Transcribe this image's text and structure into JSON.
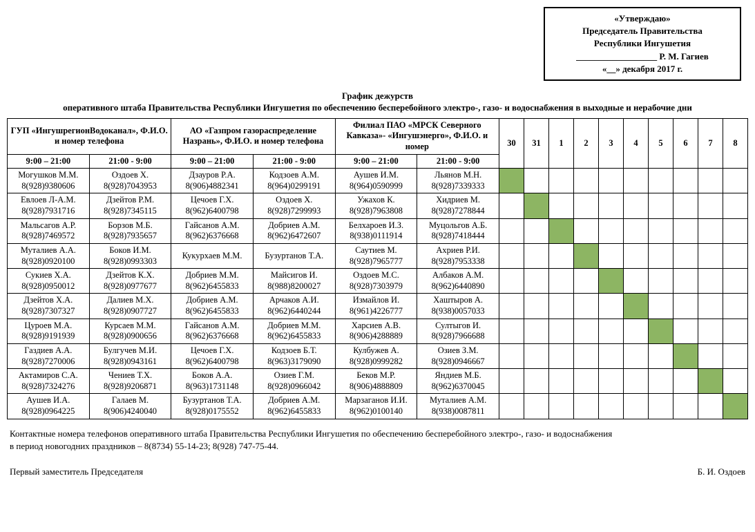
{
  "approval": {
    "line1": "«Утверждаю»",
    "line2": "Председатель Правительства",
    "line3": "Республики Ингушетия",
    "line4": "__________________ Р. М. Гагиев",
    "line5": "«__» декабря 2017 г."
  },
  "title": {
    "line1": "График дежурств",
    "line2": "оперативного штаба Правительства Республики Ингушетия по обеспечению бесперебойного электро-, газо- и водоснабжения в выходные и нерабочие дни"
  },
  "orgs": [
    "ГУП «ИнгушрегионВодоканал», Ф.И.О. и номер телефона",
    "АО «Газпром газораспределение Назрань», Ф.И.О. и номер телефона",
    "Филиал ПАО «МРСК Северного Кавказа»- «Ингушэнерго», Ф.И.О. и номер"
  ],
  "shifts": {
    "day": "9:00 – 21:00",
    "night": "21:00 - 9:00"
  },
  "days": [
    "30",
    "31",
    "1",
    "2",
    "3",
    "4",
    "5",
    "6",
    "7",
    "8"
  ],
  "rows": [
    {
      "cells": [
        {
          "n": "Могушков М.М.",
          "p": "8(928)9380606"
        },
        {
          "n": "Оздоев Х.",
          "p": "8(928)7043953"
        },
        {
          "n": "Дзауров Р.А.",
          "p": "8(906)4882341"
        },
        {
          "n": "Кодзоев А.М.",
          "p": "8(964)0299191"
        },
        {
          "n": "Аушев И.М.",
          "p": "8(964)0590999"
        },
        {
          "n": "Льянов М.Н.",
          "p": "8(928)7339333"
        }
      ],
      "green": 0
    },
    {
      "cells": [
        {
          "n": "Евлоев Л-А.М.",
          "p": "8(928)7931716"
        },
        {
          "n": "Дзейтов Р.М.",
          "p": "8(928)7345115"
        },
        {
          "n": "Цечоев Г.Х.",
          "p": "8(962)6400798"
        },
        {
          "n": "Оздоев Х.",
          "p": "8(928)7299993"
        },
        {
          "n": "Ужахов К.",
          "p": "8(928)7963808"
        },
        {
          "n": "Хидриев М.",
          "p": "8(928)7278844"
        }
      ],
      "green": 1
    },
    {
      "cells": [
        {
          "n": "Мальсагов А.Р.",
          "p": "8(928)7469572"
        },
        {
          "n": "Борзов М.Б.",
          "p": "8(928)7935657"
        },
        {
          "n": "Гайсанов А.М.",
          "p": "8(962)6376668"
        },
        {
          "n": "Добриев А.М.",
          "p": "8(962)6472607"
        },
        {
          "n": "Белхароев И.З.",
          "p": "8(938)0111914"
        },
        {
          "n": "Муцольгов А.Б.",
          "p": "8(928)7418444"
        }
      ],
      "green": 2
    },
    {
      "cells": [
        {
          "n": "Муталиев А.А.",
          "p": "8(928)0920100"
        },
        {
          "n": "Боков И.М.",
          "p": "8(928)0993303"
        },
        {
          "n": "Кукурхаев М.М.",
          "p": ""
        },
        {
          "n": "Бузуртанов Т.А.",
          "p": ""
        },
        {
          "n": "Саутиев М.",
          "p": "8(928)7965777"
        },
        {
          "n": "Ахриев Р.И.",
          "p": "8(928)7953338"
        }
      ],
      "green": 3
    },
    {
      "cells": [
        {
          "n": "Сукиев Х.А.",
          "p": "8(928)0950012"
        },
        {
          "n": "Дзейтов К.Х.",
          "p": "8(928)0977677"
        },
        {
          "n": "Добриев М.М.",
          "p": "8(962)6455833"
        },
        {
          "n": "Майсигов И.",
          "p": "8(988)8200027"
        },
        {
          "n": "Оздоев М.С.",
          "p": "8(928)7303979"
        },
        {
          "n": "Албаков А.М.",
          "p": "8(962)6440890"
        }
      ],
      "green": 4
    },
    {
      "cells": [
        {
          "n": "Дзейтов Х.А.",
          "p": "8(928)7307327"
        },
        {
          "n": "Далиев М.Х.",
          "p": "8(928)0907727"
        },
        {
          "n": "Добриев А.М.",
          "p": "8(962)6455833"
        },
        {
          "n": "Арчаков А.И.",
          "p": "8(962)6440244"
        },
        {
          "n": "Измайлов И.",
          "p": "8(961)4226777"
        },
        {
          "n": "Хаштыров А.",
          "p": "8(938)0057033"
        }
      ],
      "green": 5
    },
    {
      "cells": [
        {
          "n": "Цуроев М.А.",
          "p": "8(928)9191939"
        },
        {
          "n": "Курсаев М.М.",
          "p": "8(928)0900656"
        },
        {
          "n": "Гайсанов А.М.",
          "p": "8(962)6376668"
        },
        {
          "n": "Добриев М.М.",
          "p": "8(962)6455833"
        },
        {
          "n": "Харсиев А.В.",
          "p": "8(906)4288889"
        },
        {
          "n": "Султыгов И.",
          "p": "8(928)7966688"
        }
      ],
      "green": 6
    },
    {
      "cells": [
        {
          "n": "Газдиев А.А.",
          "p": "8(928)7270006"
        },
        {
          "n": "Булгучев М.И.",
          "p": "8(928)0943161"
        },
        {
          "n": "Цечоев Г.Х.",
          "p": "8(962)6400798"
        },
        {
          "n": "Кодзоев Б.Т.",
          "p": "8(963)3179090"
        },
        {
          "n": "Кулбужев А.",
          "p": "8(928)0999282"
        },
        {
          "n": "Озиев З.М.",
          "p": "8(928)0946667"
        }
      ],
      "green": 7
    },
    {
      "cells": [
        {
          "n": "Актамиров С.А.",
          "p": "8(928)7324276"
        },
        {
          "n": "Чениев Т.Х.",
          "p": "8(928)9206871"
        },
        {
          "n": "Боков А.А.",
          "p": "8(963)1731148"
        },
        {
          "n": "Озиев Г.М.",
          "p": "8(928)0966042"
        },
        {
          "n": "Беков М.Р.",
          "p": "8(906)4888809"
        },
        {
          "n": "Яндиев М.Б.",
          "p": "8(962)6370045"
        }
      ],
      "green": 8
    },
    {
      "cells": [
        {
          "n": "Аушев И.А.",
          "p": "8(928)0964225"
        },
        {
          "n": "Галаев М.",
          "p": "8(906)4240040"
        },
        {
          "n": "Бузуртанов Т.А.",
          "p": "8(928)0175552"
        },
        {
          "n": "Добриев А.М.",
          "p": "8(962)6455833"
        },
        {
          "n": "Марзаганов И.И.",
          "p": "8(962)0100140"
        },
        {
          "n": "Муталиев А.М.",
          "p": "8(938)0087811"
        }
      ],
      "green": 9
    }
  ],
  "notes": {
    "line1": "Контактные номера телефонов оперативного штаба Правительства Республики Ингушетия по обеспечению бесперебойного электро-, газо- и водоснабжения",
    "line2": "в период новогодних праздников – 8(8734) 55-14-23; 8(928) 747-75-44."
  },
  "signature": {
    "left": "Первый заместитель Председателя",
    "right": "Б. И. Оздоев"
  },
  "colors": {
    "green": "#8db563"
  }
}
